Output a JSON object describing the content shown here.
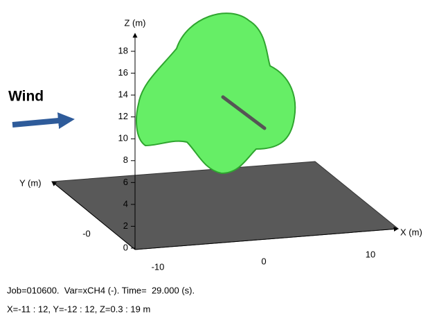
{
  "wind_label": "Wind",
  "axes": {
    "z": {
      "label": "Z (m)",
      "ticks": [
        "0",
        "2",
        "4",
        "6",
        "8",
        "10",
        "12",
        "14",
        "16",
        "18"
      ]
    },
    "y": {
      "label": "Y (m)",
      "ticks": [
        "-0"
      ]
    },
    "x": {
      "label": "X (m)",
      "ticks": [
        "-10",
        "0",
        "10"
      ]
    }
  },
  "caption": [
    "Job=010600.  Var=xCH4 (-). Time=  29.000 (s).",
    "X=-11 : 12, Y=-12 : 12, Z=0.3 : 19 m"
  ]
}
